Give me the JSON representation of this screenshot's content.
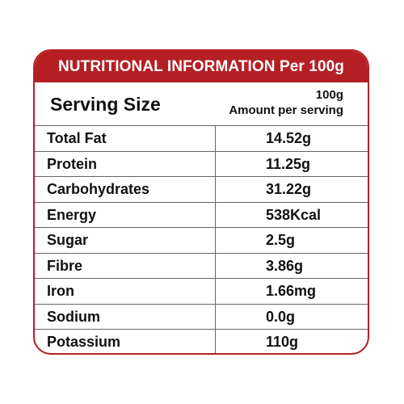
{
  "banner": {
    "title": "NUTRITIONAL INFORMATION Per 100g"
  },
  "serving": {
    "label": "Serving Size",
    "value": "100g",
    "amount_label": "Amount per serving"
  },
  "nutrients": [
    {
      "name": "Total Fat",
      "value": "14.52g"
    },
    {
      "name": "Protein",
      "value": "11.25g"
    },
    {
      "name": "Carbohydrates",
      "value": "31.22g"
    },
    {
      "name": "Energy",
      "value": "538Kcal"
    },
    {
      "name": "Sugar",
      "value": "2.5g"
    },
    {
      "name": "Fibre",
      "value": "3.86g"
    },
    {
      "name": "Iron",
      "value": "1.66mg"
    },
    {
      "name": "Sodium",
      "value": "0.0g"
    },
    {
      "name": "Potassium",
      "value": "110g"
    }
  ],
  "colors": {
    "accent": "#b51f24",
    "text": "#111111",
    "rule": "#666666"
  }
}
